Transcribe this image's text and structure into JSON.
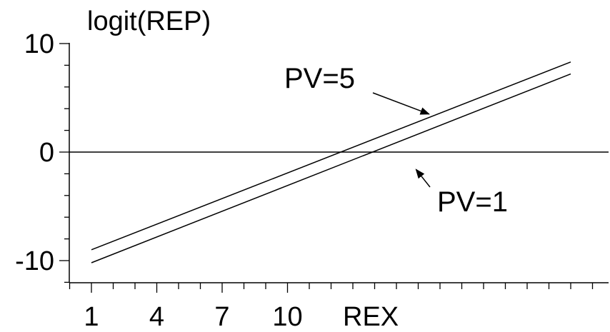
{
  "chart_data": {
    "type": "line",
    "ylabel": "logit(REP)",
    "xlabel": "REX",
    "xlim": [
      0,
      24
    ],
    "ylim": [
      -12,
      10
    ],
    "x_ticks": [
      1,
      4,
      7,
      10
    ],
    "y_ticks": [
      10,
      0,
      -10
    ],
    "x_tick_labels": [
      "1",
      "4",
      "7",
      "10"
    ],
    "y_tick_labels": [
      "10",
      "0",
      "-10"
    ],
    "reference_line_y": 0,
    "series": [
      {
        "name": "PV=5",
        "x": [
          1,
          23
        ],
        "y": [
          -9.0,
          8.3
        ]
      },
      {
        "name": "PV=1",
        "x": [
          1,
          23
        ],
        "y": [
          -10.2,
          7.2
        ]
      }
    ],
    "annotations": [
      {
        "text": "PV=5",
        "series": "PV=5",
        "arrow_to": {
          "x": 16.5,
          "y": 3.5
        }
      },
      {
        "text": "PV=1",
        "series": "PV=1",
        "arrow_to": {
          "x": 15.9,
          "y": -1.6
        }
      }
    ]
  }
}
